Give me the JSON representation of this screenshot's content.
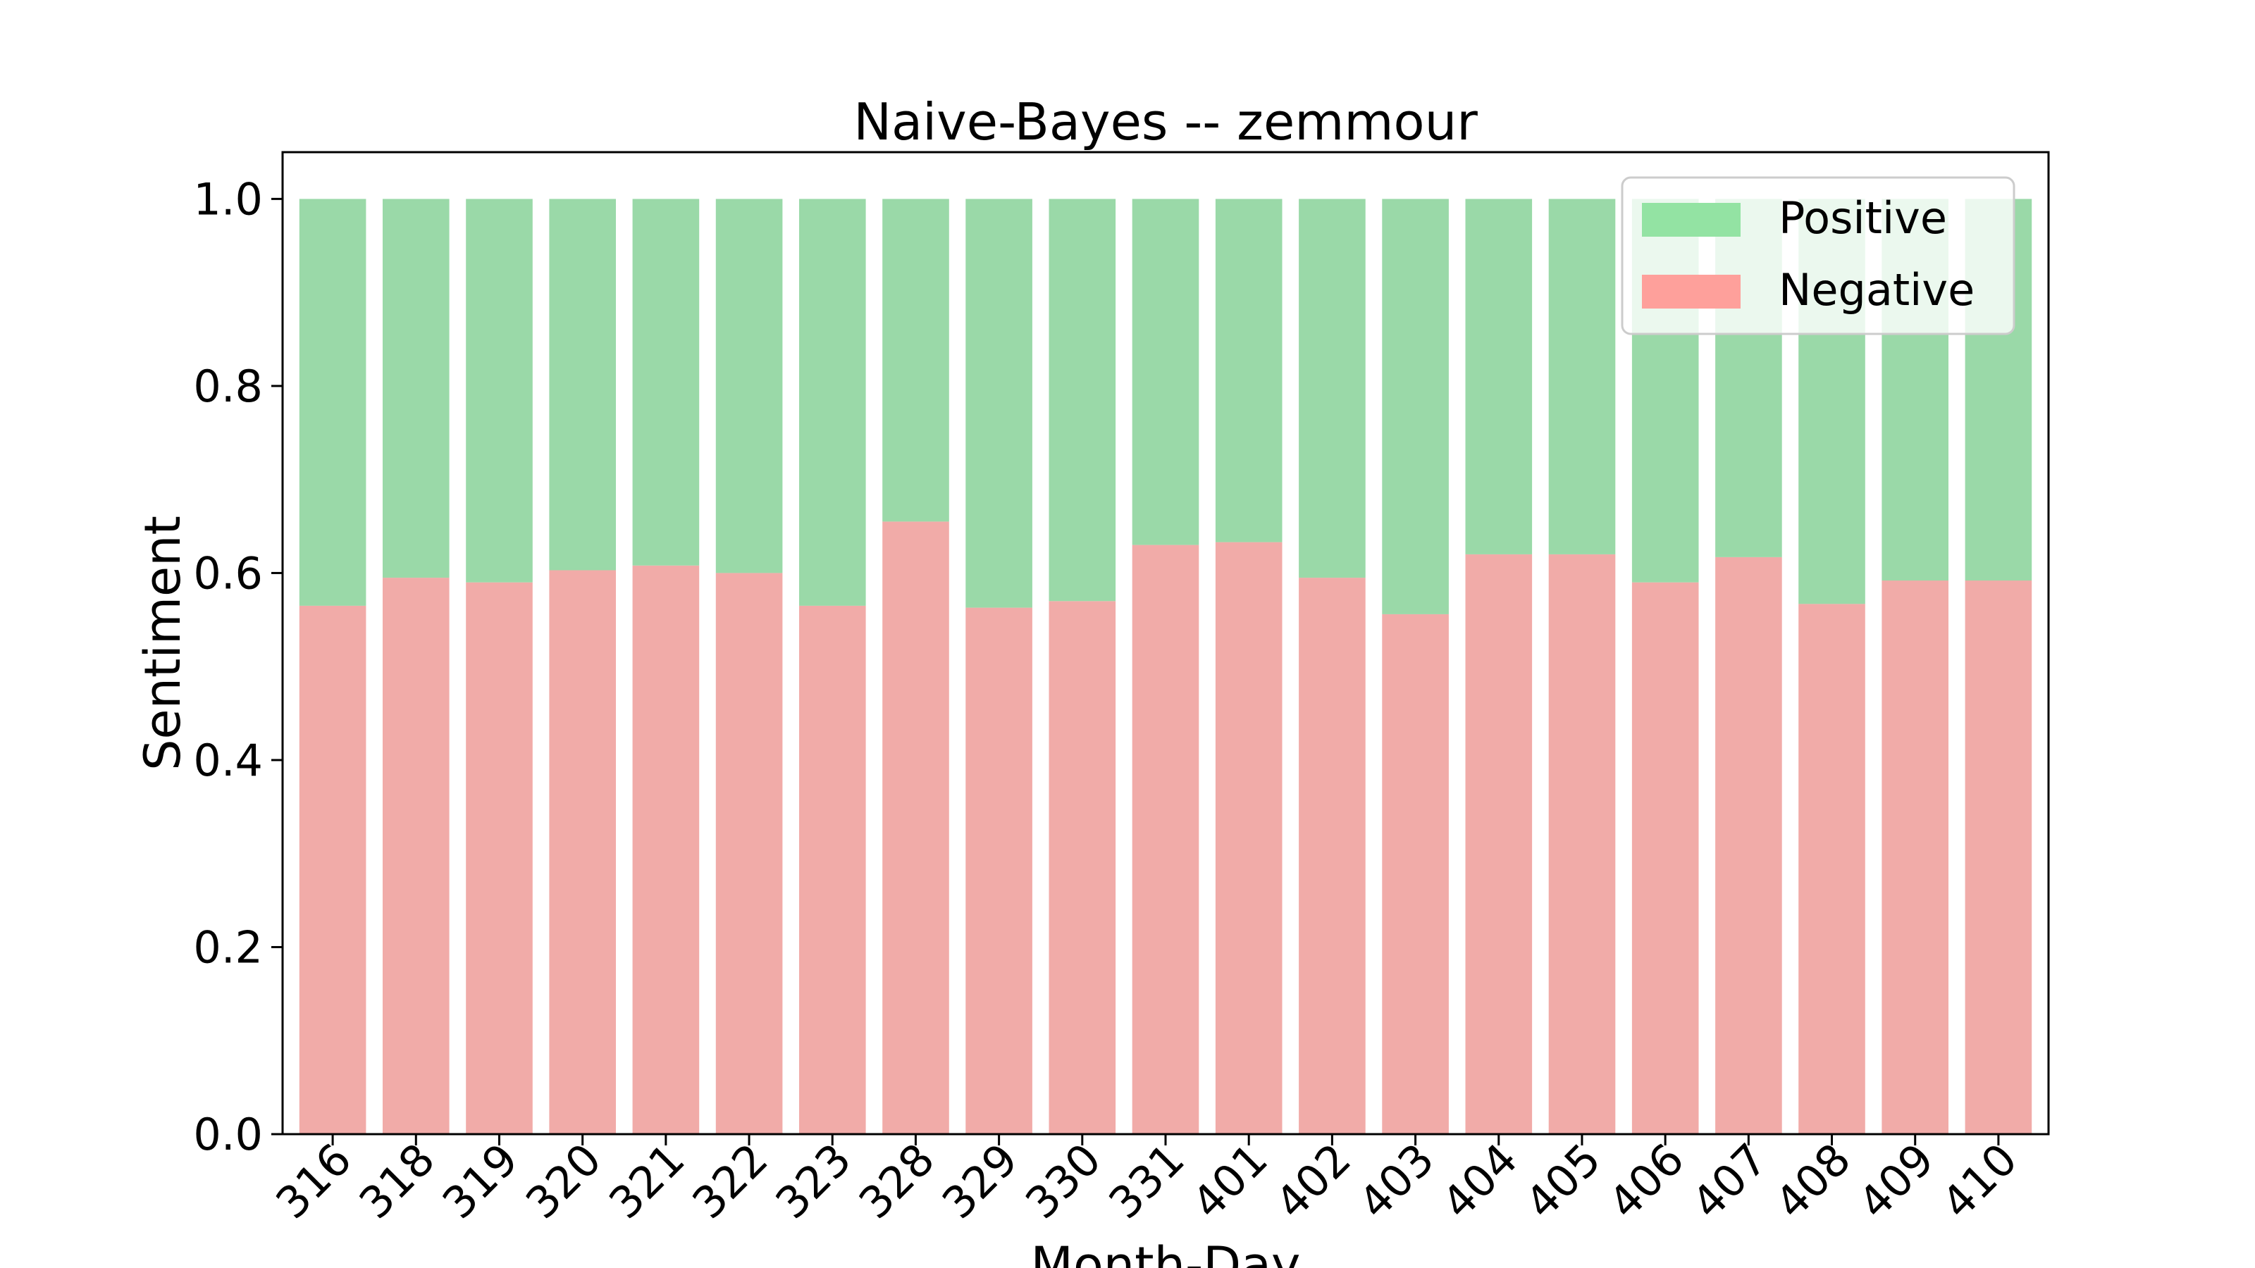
{
  "chart_data": {
    "type": "bar",
    "stacked": true,
    "title": "Naive-Bayes  --  zemmour",
    "xlabel": "Month-Day",
    "ylabel": "Sentiment",
    "ylim": [
      0,
      1.05
    ],
    "yticks": [
      "0.0",
      "0.2",
      "0.4",
      "0.6",
      "0.8",
      "1.0"
    ],
    "categories": [
      "316",
      "318",
      "319",
      "320",
      "321",
      "322",
      "323",
      "328",
      "329",
      "330",
      "331",
      "401",
      "402",
      "403",
      "404",
      "405",
      "406",
      "407",
      "408",
      "409",
      "410"
    ],
    "series": [
      {
        "name": "Negative",
        "color": "#f1aba8",
        "values": [
          0.565,
          0.595,
          0.59,
          0.603,
          0.608,
          0.6,
          0.565,
          0.655,
          0.563,
          0.57,
          0.63,
          0.633,
          0.595,
          0.556,
          0.62,
          0.62,
          0.59,
          0.617,
          0.567,
          0.592,
          0.592
        ]
      },
      {
        "name": "Positive",
        "color": "#9ad9a8",
        "values": [
          0.435,
          0.405,
          0.41,
          0.397,
          0.392,
          0.4,
          0.435,
          0.345,
          0.437,
          0.43,
          0.37,
          0.367,
          0.405,
          0.444,
          0.38,
          0.38,
          0.41,
          0.383,
          0.433,
          0.408,
          0.408
        ]
      }
    ],
    "legend": {
      "position": "top-right",
      "items": [
        {
          "label": "Positive",
          "color": "#93e3a3"
        },
        {
          "label": "Negative",
          "color": "#fea09b"
        }
      ]
    },
    "grid": false
  }
}
